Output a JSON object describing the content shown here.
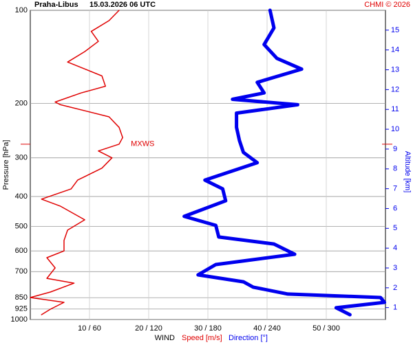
{
  "chart_data": {
    "type": "line",
    "title": "Praha-Libus",
    "subtitle": "15.03.2026 06 UTC",
    "credit": "CHMI © 2026",
    "ylabel": "Pressure [hPa]",
    "y2label": "Altitude [km]",
    "xlabel": "WIND",
    "ylog": true,
    "ylim": [
      1000,
      100
    ],
    "yticks": [
      100,
      200,
      300,
      400,
      500,
      600,
      700,
      850,
      925,
      1000
    ],
    "y2lim": [
      0.4,
      16
    ],
    "y2ticks": [
      1,
      2,
      3,
      4,
      5,
      6,
      7,
      8,
      9,
      10,
      11,
      12,
      13,
      14,
      15
    ],
    "y2color": "#0000ee",
    "xlim": [
      0,
      60
    ],
    "x2lim": [
      0,
      360
    ],
    "xticks": [
      {
        "value": 10,
        "label": "10 / 60"
      },
      {
        "value": 20,
        "label": "20 / 120"
      },
      {
        "value": 30,
        "label": "30 / 180"
      },
      {
        "value": 40,
        "label": "40 / 240"
      },
      {
        "value": 50,
        "label": "50 / 300"
      }
    ],
    "grid": true,
    "annotation": {
      "label": "MXWS",
      "pressure": 271,
      "color": "#e00000"
    },
    "series": [
      {
        "name": "Speed [m/s]",
        "color": "#e00000",
        "width": 1.5,
        "pressure": [
          100,
          108,
          117,
          126,
          136,
          147,
          163,
          176,
          185,
          198,
          202,
          221,
          239,
          258,
          271,
          285,
          300,
          324,
          354,
          378,
          408,
          430,
          476,
          514,
          555,
          600,
          631,
          681,
          736,
          763,
          815,
          849,
          880,
          926,
          965
        ],
        "values": [
          15.0,
          13.3,
          10.3,
          11.5,
          9.2,
          6.3,
          12.1,
          12.7,
          8.6,
          4.2,
          5.1,
          13.3,
          15.0,
          15.6,
          15.0,
          11.5,
          13.8,
          12.1,
          8.0,
          6.9,
          1.9,
          5.1,
          9.2,
          6.3,
          5.7,
          5.7,
          2.8,
          4.2,
          2.8,
          7.4,
          3.4,
          0,
          5.7,
          3.4,
          1.9
        ]
      },
      {
        "name": "Direction [°]",
        "color": "#0000ee",
        "width": 5,
        "axis": "x2",
        "pressure": [
          100,
          114,
          129,
          143,
          155,
          171,
          185,
          194,
          202,
          215,
          239,
          264,
          288,
          311,
          354,
          378,
          413,
          464,
          496,
          541,
          570,
          615,
          664,
          717,
          755,
          786,
          827,
          849,
          880,
          916,
          965
        ],
        "values": [
          243,
          247,
          237,
          250,
          275,
          230,
          237,
          205,
          271,
          209,
          209,
          212,
          216,
          230,
          177,
          195,
          198,
          156,
          188,
          191,
          247,
          268,
          188,
          170,
          216,
          226,
          261,
          355,
          359,
          310,
          324
        ]
      }
    ]
  }
}
